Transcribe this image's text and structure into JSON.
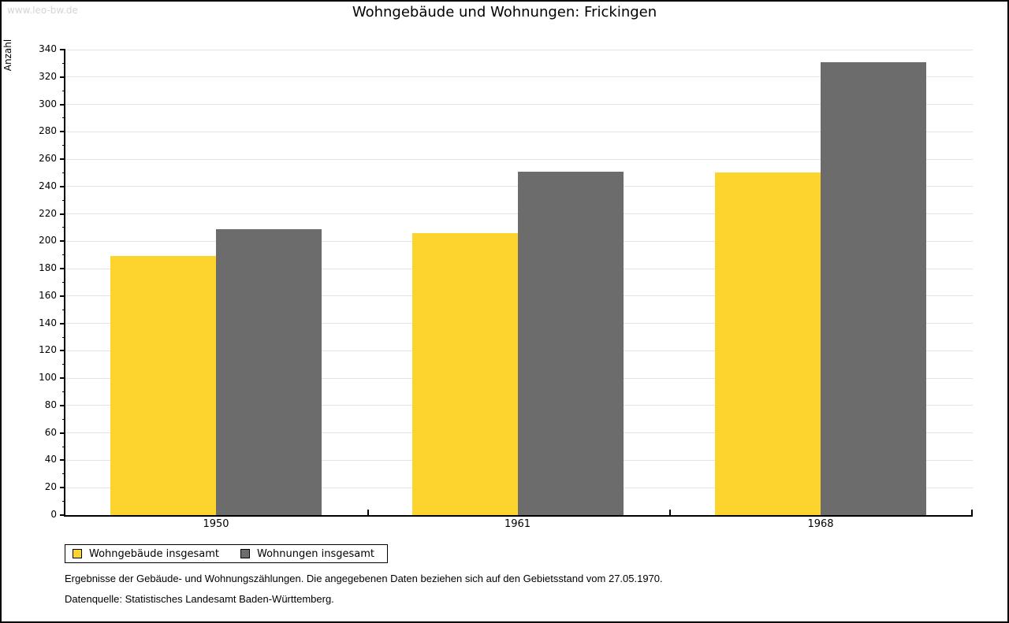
{
  "watermark": "www.leo-bw.de",
  "title": "Wohngebäude und Wohnungen: Frickingen",
  "ylabel": "Anzahl",
  "colors": {
    "bar_yellow": "#FCD42D",
    "bar_gray": "#6C6C6C",
    "gridline": "#E3E3E3",
    "watermark_gray": "#D5D5D5",
    "axis": "#000000"
  },
  "chart_data": {
    "type": "bar",
    "title": "Wohngebäude und Wohnungen: Frickingen",
    "xlabel": "",
    "ylabel": "Anzahl",
    "categories": [
      "1950",
      "1961",
      "1968"
    ],
    "series": [
      {
        "name": "Wohngebäude insgesamt",
        "color": "#FCD42D",
        "values": [
          189,
          206,
          250
        ]
      },
      {
        "name": "Wohnungen insgesamt",
        "color": "#6C6C6C",
        "values": [
          209,
          251,
          331
        ]
      }
    ],
    "ylim": [
      0,
      340
    ],
    "ytick_step": 20,
    "yticks": [
      0,
      20,
      40,
      60,
      80,
      100,
      120,
      140,
      160,
      180,
      200,
      220,
      240,
      260,
      280,
      300,
      320,
      340
    ],
    "minor_tick_step": 10,
    "grid": true,
    "legend_position": "bottom-left"
  },
  "footer": {
    "line1": "Ergebnisse der Gebäude- und Wohnungszählungen. Die angegebenen Daten beziehen sich auf den Gebietsstand vom 27.05.1970.",
    "line2": "Datenquelle: Statistisches Landesamt Baden-Württemberg."
  }
}
